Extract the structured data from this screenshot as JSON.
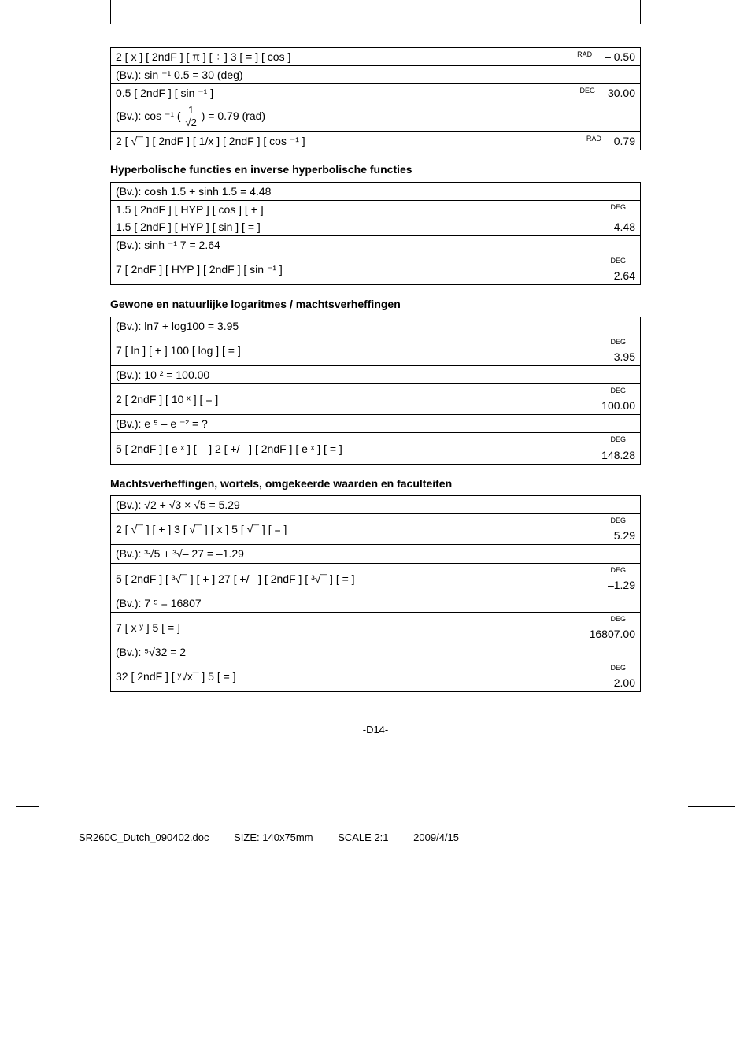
{
  "section1": {
    "r1_keys": "2 [ x ] [ 2ndF ] [ π ] [ ÷ ] 3 [ = ] [ cos ]",
    "r1_mode": "RAD",
    "r1_val": "– 0.50",
    "r2_ex": "(Bv.): sin ⁻¹ 0.5 = 30 (deg)",
    "r3_keys": "0.5 [ 2ndF ] [ sin ⁻¹ ]",
    "r3_mode": "DEG",
    "r3_val": "30.00",
    "r4_ex_pre": "(Bv.): cos ⁻¹ ( ",
    "r4_ex_post": " ) = 0.79 (rad)",
    "r4_num": "1",
    "r4_den": "√2",
    "r5_keys": "2 [ √¯ ] [ 2ndF ] [ 1/x ] [ 2ndF ] [ cos ⁻¹ ]",
    "r5_mode": "RAD",
    "r5_val": "0.79"
  },
  "section2": {
    "title": "Hyperbolische functies en inverse hyperbolische functies",
    "r1_ex": "(Bv.): cosh 1.5 + sinh 1.5 = 4.48",
    "r2_keys": "1.5 [ 2ndF ] [ HYP ] [ cos ] [ + ]",
    "r2_mode": "DEG",
    "r3_keys": "1.5 [ 2ndF ] [ HYP ] [ sin ] [ = ]",
    "r3_val": "4.48",
    "r4_ex": "(Bv.): sinh ⁻¹ 7 = 2.64",
    "r5_keys": "7 [ 2ndF ] [ HYP ] [ 2ndF ] [ sin ⁻¹ ]",
    "r5_mode": "DEG",
    "r5_val": "2.64"
  },
  "section3": {
    "title": "Gewone en natuurlijke logaritmes / machtsverheffingen",
    "r1_ex": "(Bv.): ln7 + log100 = 3.95",
    "r2_keys": "7 [ ln ] [ + ] 100 [ log ] [ = ]",
    "r2_mode": "DEG",
    "r2_val": "3.95",
    "r3_ex": "(Bv.): 10 ² = 100.00",
    "r4_keys": "2 [ 2ndF ] [ 10 ˣ ] [ = ]",
    "r4_mode": "DEG",
    "r4_val": "100.00",
    "r5_ex": "(Bv.): e ⁵ – e ⁻² = ?",
    "r6_keys": "5 [ 2ndF ] [ e ˣ ] [ – ] 2 [ +/– ] [ 2ndF ] [ e ˣ ] [ = ]",
    "r6_mode": "DEG",
    "r6_val": "148.28"
  },
  "section4": {
    "title": "Machtsverheffingen, wortels, omgekeerde waarden en faculteiten",
    "r1_ex": "(Bv.): √2 + √3 × √5 = 5.29",
    "r2_keys": "2 [ √¯ ] [ + ] 3 [ √¯ ] [ x ] 5 [ √¯ ] [ = ]",
    "r2_mode": "DEG",
    "r2_val": "5.29",
    "r3_ex": "(Bv.): ³√5 + ³√– 27 = –1.29",
    "r4_keys": "5 [ 2ndF ] [ ³√¯ ] [ + ] 27 [ +/– ] [ 2ndF ] [ ³√¯ ] [ = ]",
    "r4_mode": "DEG",
    "r4_val": "–1.29",
    "r5_ex": "(Bv.): 7 ⁵ = 16807",
    "r6_keys": "7 [ x ʸ ] 5 [ = ]",
    "r6_mode": "DEG",
    "r6_val": "16807.00",
    "r7_ex": "(Bv.): ⁵√32 = 2",
    "r8_keys": "32 [ 2ndF ] [ ʸ√x¯ ] 5 [ = ]",
    "r8_mode": "DEG",
    "r8_val": "2.00"
  },
  "footer": {
    "pagenum": "-D14-",
    "docname": "SR260C_Dutch_090402.doc",
    "size": "SIZE: 140x75mm",
    "scale": "SCALE 2:1",
    "date": "2009/4/15"
  }
}
